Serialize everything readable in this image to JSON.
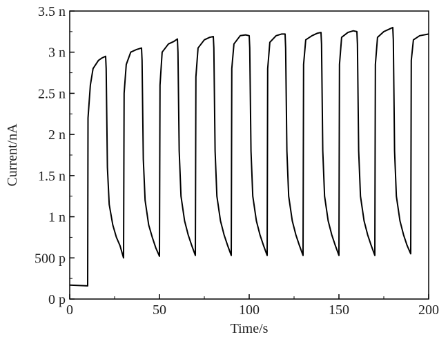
{
  "chart_data": {
    "type": "line",
    "title": "",
    "xlabel": "Time/s",
    "ylabel": "Current/nA",
    "xlim": [
      0,
      200
    ],
    "ylim": [
      0,
      3.5
    ],
    "x_ticks": [
      0,
      50,
      100,
      150,
      200
    ],
    "x_tick_labels": [
      "0",
      "50",
      "100",
      "150",
      "200"
    ],
    "y_ticks": [
      0,
      0.5,
      1,
      1.5,
      2,
      2.5,
      3,
      3.5
    ],
    "y_tick_labels": [
      "0 p",
      "500 p",
      "1 n",
      "1.5 n",
      "2 n",
      "2.5 n",
      "3 n",
      "3.5 n"
    ],
    "grid": false,
    "line_color": "#000000",
    "series": [
      {
        "points": [
          [
            0,
            0.17
          ],
          [
            10,
            0.16
          ],
          [
            10.2,
            2.2
          ],
          [
            11.5,
            2.6
          ],
          [
            13,
            2.8
          ],
          [
            16,
            2.9
          ],
          [
            18,
            2.93
          ],
          [
            20,
            2.95
          ],
          [
            20.3,
            2.8
          ],
          [
            21,
            1.6
          ],
          [
            22,
            1.15
          ],
          [
            24,
            0.9
          ],
          [
            26,
            0.75
          ],
          [
            28,
            0.65
          ],
          [
            30,
            0.5
          ],
          [
            30.3,
            2.5
          ],
          [
            31.5,
            2.85
          ],
          [
            34,
            3.0
          ],
          [
            37,
            3.03
          ],
          [
            40,
            3.05
          ],
          [
            40.3,
            2.9
          ],
          [
            41,
            1.7
          ],
          [
            42,
            1.2
          ],
          [
            44,
            0.9
          ],
          [
            46,
            0.75
          ],
          [
            48,
            0.62
          ],
          [
            50,
            0.52
          ],
          [
            50.3,
            2.6
          ],
          [
            51.5,
            3.0
          ],
          [
            55,
            3.1
          ],
          [
            58,
            3.13
          ],
          [
            60,
            3.16
          ],
          [
            60.3,
            3.0
          ],
          [
            61,
            1.8
          ],
          [
            62,
            1.25
          ],
          [
            64,
            0.95
          ],
          [
            66,
            0.78
          ],
          [
            68,
            0.65
          ],
          [
            70,
            0.53
          ],
          [
            70.3,
            2.7
          ],
          [
            71.5,
            3.05
          ],
          [
            75,
            3.15
          ],
          [
            78,
            3.18
          ],
          [
            80,
            3.19
          ],
          [
            80.3,
            3.05
          ],
          [
            81,
            1.8
          ],
          [
            82,
            1.25
          ],
          [
            84,
            0.95
          ],
          [
            86,
            0.78
          ],
          [
            88,
            0.65
          ],
          [
            90,
            0.53
          ],
          [
            90.3,
            2.8
          ],
          [
            91.5,
            3.1
          ],
          [
            95,
            3.2
          ],
          [
            98,
            3.21
          ],
          [
            100,
            3.2
          ],
          [
            100.3,
            3.05
          ],
          [
            101,
            1.8
          ],
          [
            102,
            1.25
          ],
          [
            104,
            0.95
          ],
          [
            106,
            0.78
          ],
          [
            108,
            0.65
          ],
          [
            110,
            0.53
          ],
          [
            110.3,
            2.8
          ],
          [
            111.5,
            3.12
          ],
          [
            115,
            3.2
          ],
          [
            118,
            3.22
          ],
          [
            120,
            3.22
          ],
          [
            120.3,
            3.05
          ],
          [
            121,
            1.8
          ],
          [
            122,
            1.25
          ],
          [
            124,
            0.95
          ],
          [
            126,
            0.78
          ],
          [
            128,
            0.65
          ],
          [
            130,
            0.53
          ],
          [
            130.3,
            2.85
          ],
          [
            131.5,
            3.15
          ],
          [
            135,
            3.2
          ],
          [
            138,
            3.23
          ],
          [
            140,
            3.24
          ],
          [
            140.3,
            3.1
          ],
          [
            141,
            1.8
          ],
          [
            142,
            1.25
          ],
          [
            144,
            0.95
          ],
          [
            146,
            0.78
          ],
          [
            148,
            0.65
          ],
          [
            150,
            0.53
          ],
          [
            150.3,
            2.85
          ],
          [
            151.5,
            3.18
          ],
          [
            155,
            3.24
          ],
          [
            158,
            3.26
          ],
          [
            160,
            3.25
          ],
          [
            160.3,
            3.1
          ],
          [
            161,
            1.8
          ],
          [
            162,
            1.25
          ],
          [
            164,
            0.95
          ],
          [
            166,
            0.78
          ],
          [
            168,
            0.65
          ],
          [
            170,
            0.53
          ],
          [
            170.3,
            2.85
          ],
          [
            171.5,
            3.18
          ],
          [
            175,
            3.25
          ],
          [
            178,
            3.28
          ],
          [
            180,
            3.3
          ],
          [
            180.3,
            3.15
          ],
          [
            181,
            1.8
          ],
          [
            182,
            1.25
          ],
          [
            184,
            0.95
          ],
          [
            186,
            0.78
          ],
          [
            188,
            0.65
          ],
          [
            190,
            0.55
          ],
          [
            190.3,
            2.9
          ],
          [
            191.5,
            3.15
          ],
          [
            195,
            3.2
          ],
          [
            200,
            3.22
          ]
        ]
      }
    ]
  }
}
